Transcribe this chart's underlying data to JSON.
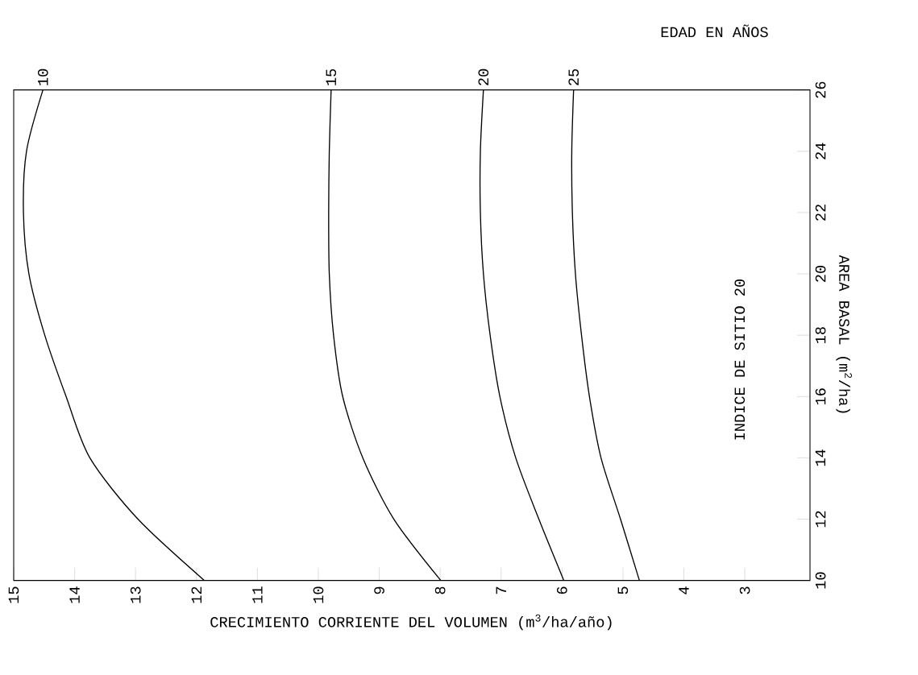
{
  "chart_data": {
    "type": "line",
    "xlabel": "CRECIMIENTO CORRIENTE DEL VOLUMEN (m$^{3}$/ha/año)",
    "ylabel": "AREA BASAL (m$^{2}$/ha)",
    "legend_title": "EDAD EN AÑOS",
    "annotations": [
      "INDICE DE SITIO 20"
    ],
    "xlim": [
      15,
      1.93
    ],
    "xticks": [
      15,
      14,
      13,
      12,
      11,
      10,
      9,
      8,
      7,
      6,
      5,
      4,
      3
    ],
    "ylim": [
      10,
      26
    ],
    "yticks": [
      10,
      12,
      14,
      16,
      18,
      20,
      22,
      24,
      26
    ],
    "grid": false,
    "marker": "none",
    "line_style": "solid",
    "series": [
      {
        "name": "10",
        "color": "#000000",
        "x": [
          11.87,
          12.96,
          13.75,
          14.14,
          14.49,
          14.75,
          14.84,
          14.79,
          14.52
        ],
        "values": [
          10,
          12,
          14,
          16,
          18,
          20,
          22,
          24,
          26
        ]
      },
      {
        "name": "15",
        "color": "#000000",
        "x": [
          7.99,
          8.76,
          9.27,
          9.6,
          9.75,
          9.82,
          9.83,
          9.82,
          9.79
        ],
        "values": [
          10,
          12,
          14,
          16,
          18,
          20,
          22,
          24,
          26
        ]
      },
      {
        "name": "20",
        "color": "#000000",
        "x": [
          5.97,
          6.38,
          6.76,
          7.02,
          7.18,
          7.29,
          7.34,
          7.34,
          7.29
        ],
        "values": [
          10,
          12,
          14,
          16,
          18,
          20,
          22,
          24,
          26
        ]
      },
      {
        "name": "25",
        "color": "#000000",
        "x": [
          4.73,
          5.04,
          5.36,
          5.55,
          5.68,
          5.78,
          5.83,
          5.84,
          5.81
        ],
        "values": [
          10,
          12,
          14,
          16,
          18,
          20,
          22,
          24,
          26
        ]
      }
    ]
  }
}
